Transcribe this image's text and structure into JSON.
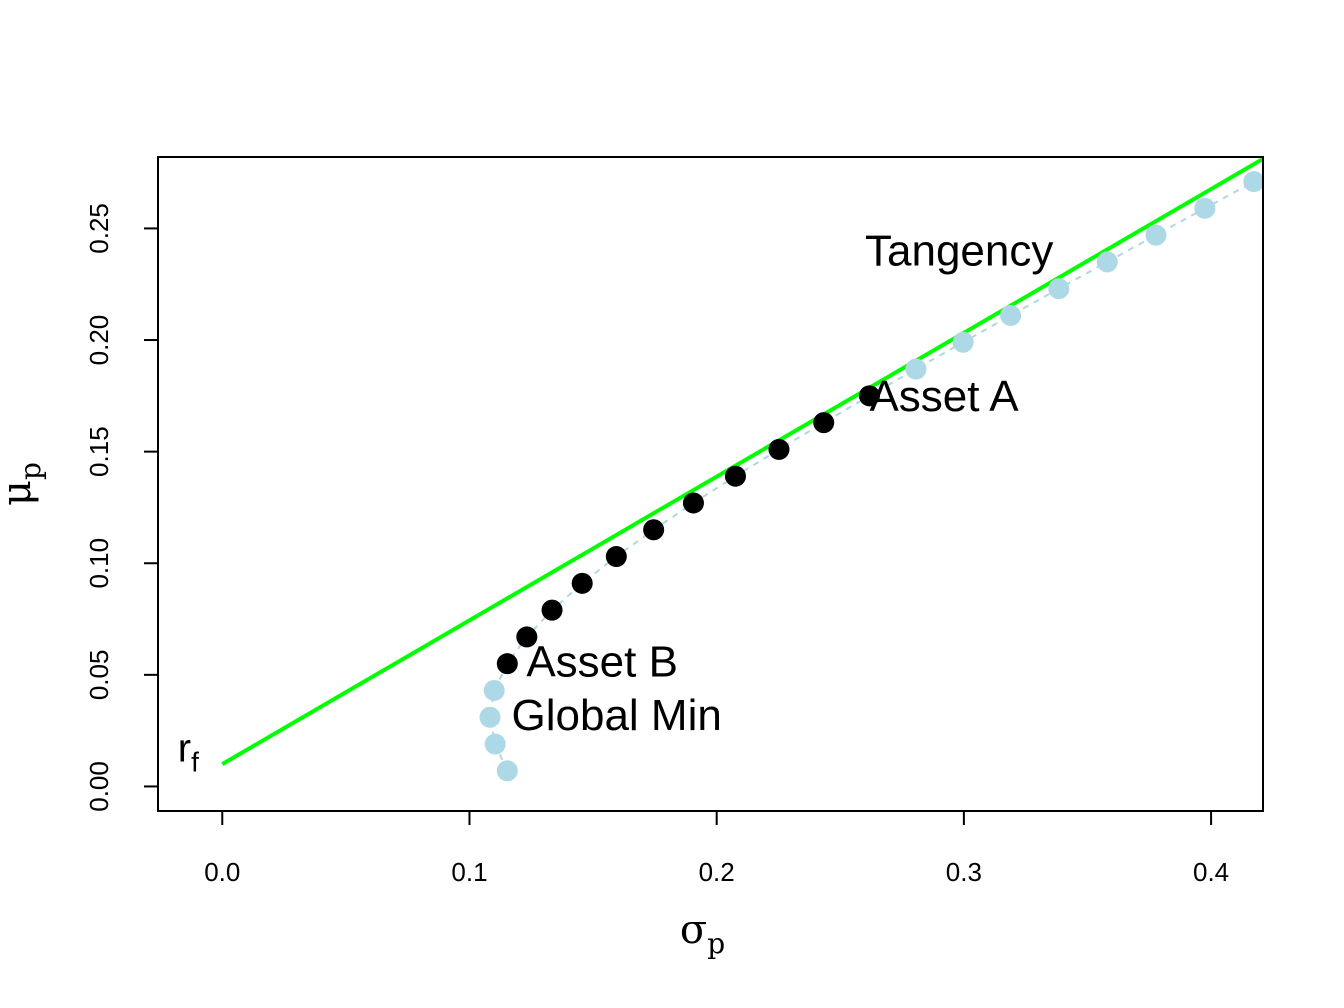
{
  "chart_data": {
    "type": "scatter",
    "title": "",
    "xlabel": {
      "main": "σ",
      "sub": "p"
    },
    "ylabel": {
      "main": "μ",
      "sub": "p"
    },
    "xlim": [
      -0.026,
      0.421
    ],
    "ylim": [
      -0.011,
      0.282
    ],
    "xticks": [
      0.0,
      0.1,
      0.2,
      0.3,
      0.4
    ],
    "xtick_labels": [
      "0.0",
      "0.1",
      "0.2",
      "0.3",
      "0.4"
    ],
    "yticks": [
      0.0,
      0.05,
      0.1,
      0.15,
      0.2,
      0.25
    ],
    "ytick_labels": [
      "0.00",
      "0.05",
      "0.10",
      "0.15",
      "0.20",
      "0.25"
    ],
    "grid": false,
    "colors": {
      "frontier": "#add8e6",
      "long_only": "#000000",
      "tangency_line": "#00ff00"
    },
    "frontier": {
      "sigma": [
        0.1153,
        0.1104,
        0.1083,
        0.11,
        0.1153,
        0.1232,
        0.1334,
        0.1456,
        0.1594,
        0.1745,
        0.1906,
        0.2076,
        0.2252,
        0.2433,
        0.2618,
        0.2806,
        0.2997,
        0.3189,
        0.3384,
        0.358,
        0.3777,
        0.3975,
        0.4173
      ],
      "mu": [
        0.007,
        0.019,
        0.031,
        0.043,
        0.055,
        0.067,
        0.079,
        0.091,
        0.103,
        0.115,
        0.127,
        0.139,
        0.151,
        0.163,
        0.175,
        0.187,
        0.199,
        0.211,
        0.223,
        0.235,
        0.247,
        0.259,
        0.271
      ]
    },
    "long_only": {
      "sigma": [
        0.1153,
        0.1232,
        0.1334,
        0.1456,
        0.1594,
        0.1745,
        0.1906,
        0.2076,
        0.2252,
        0.2433,
        0.2618
      ],
      "mu": [
        0.055,
        0.067,
        0.079,
        0.091,
        0.103,
        0.115,
        0.127,
        0.139,
        0.151,
        0.163,
        0.175
      ]
    },
    "tangency_line": {
      "rf": 0.01,
      "slope": 0.6441
    },
    "annotations": [
      {
        "text": "Asset A",
        "x": 0.2618,
        "y": 0.175
      },
      {
        "text": "Asset B",
        "x": 0.123,
        "y": 0.056
      },
      {
        "text": "Global Min",
        "x": 0.117,
        "y": 0.032
      },
      {
        "text": "Tangency",
        "x": 0.26,
        "y": 0.24
      }
    ],
    "rf_label": {
      "main": "r",
      "sub": "f",
      "x": -0.018,
      "y": 0.012
    }
  }
}
